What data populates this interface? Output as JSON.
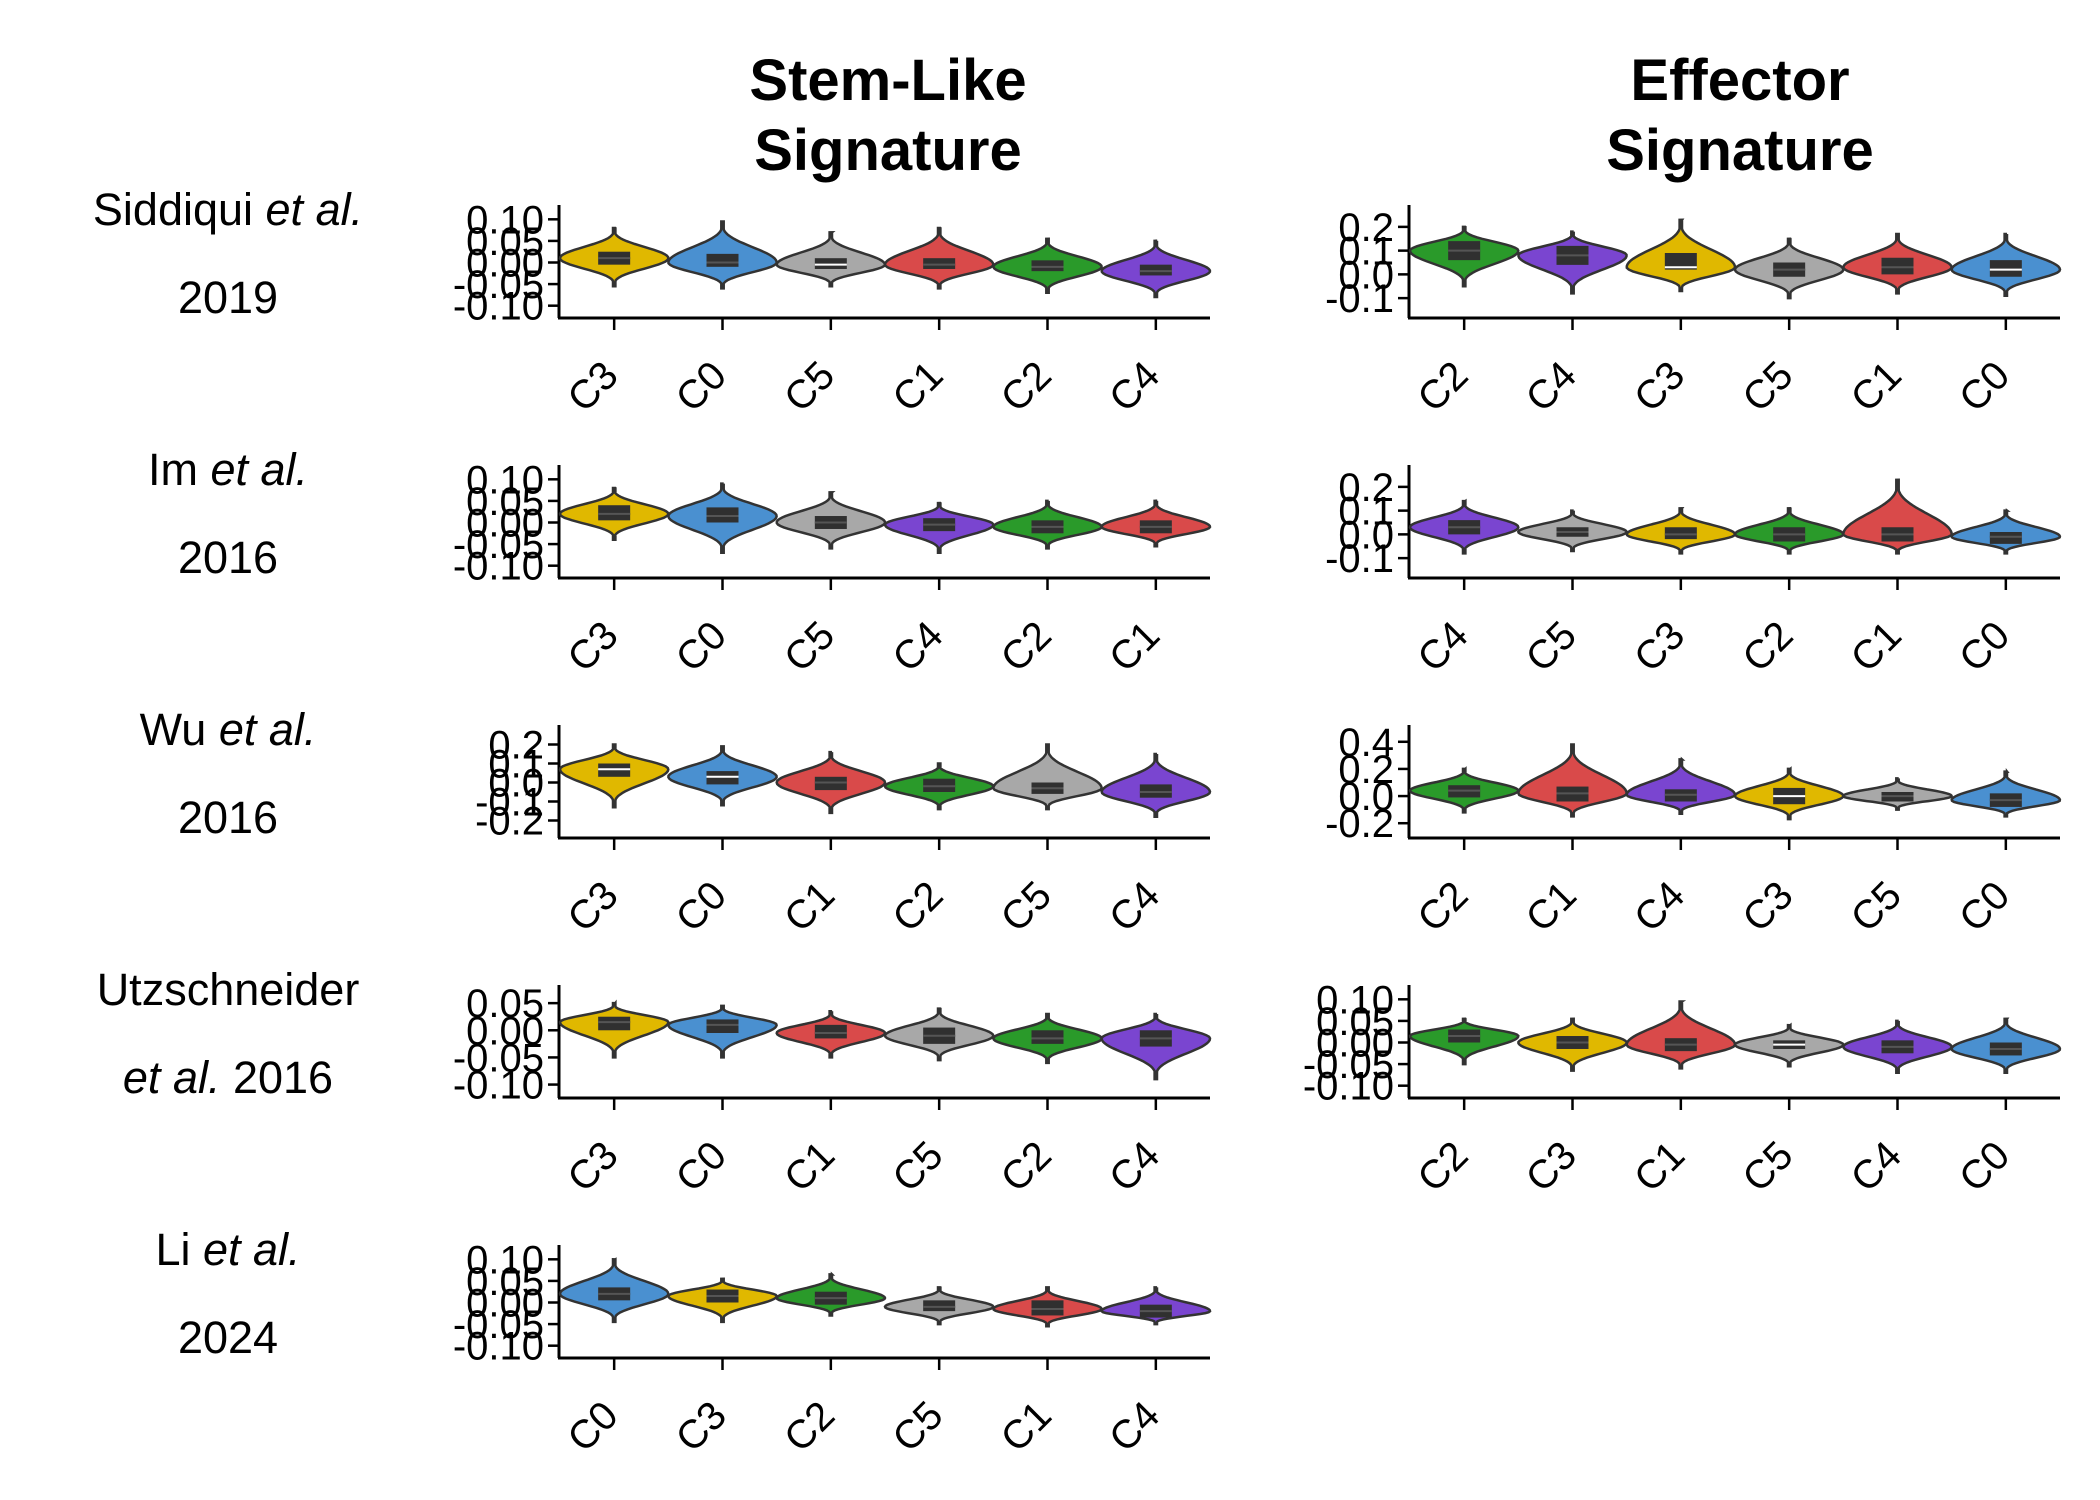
{
  "column_titles": [
    [
      "Stem-Like",
      "Signature"
    ],
    [
      "Effector",
      "Signature"
    ]
  ],
  "row_labels": [
    {
      "line1": "Siddiqui",
      "line1_italic": " et al.",
      "line2": "2019",
      "line2_italic_prefix": ""
    },
    {
      "line1": "Im",
      "line1_italic": " et al.",
      "line2": "2016",
      "line2_italic_prefix": ""
    },
    {
      "line1": "Wu",
      "line1_italic": " et al.",
      "line2": "2016",
      "line2_italic_prefix": ""
    },
    {
      "line1": "Utzschneider",
      "line1_italic": "",
      "line2": " 2016",
      "line2_italic_prefix": "et al."
    },
    {
      "line1": "Li",
      "line1_italic": " et al.",
      "line2": "2024",
      "line2_italic_prefix": ""
    }
  ],
  "colors": {
    "C0": "#4a90d0",
    "C1": "#d94a4a",
    "C2": "#2a9a2a",
    "C3": "#e0b800",
    "C4": "#7a45d0",
    "C5": "#a8a8a8",
    "box": "#303030",
    "outline": "#333333"
  },
  "chart_data": [
    {
      "type": "violin",
      "panel": "Siddiqui et al. 2019 / Stem-Like Signature",
      "yticks": [
        "0.10",
        "0.05",
        "0.00",
        "-0.05",
        "-0.10"
      ],
      "ylim": [
        -0.11,
        0.11
      ],
      "categories": [
        "C3",
        "C0",
        "C5",
        "C1",
        "C2",
        "C4"
      ],
      "medians": [
        0.01,
        0.0,
        -0.005,
        -0.005,
        -0.01,
        -0.02
      ],
      "q1": [
        -0.005,
        -0.01,
        -0.015,
        -0.015,
        -0.02,
        -0.03
      ],
      "q3": [
        0.025,
        0.02,
        0.01,
        0.01,
        0.005,
        -0.005
      ],
      "min": [
        -0.055,
        -0.06,
        -0.055,
        -0.06,
        -0.07,
        -0.08
      ],
      "max": [
        0.08,
        0.095,
        0.07,
        0.08,
        0.055,
        0.05
      ],
      "white_median": [
        false,
        false,
        true,
        false,
        false,
        false
      ]
    },
    {
      "type": "violin",
      "panel": "Siddiqui et al. 2019 / Effector Signature",
      "yticks": [
        "0.2",
        "0.1",
        "0.0",
        "-0.1"
      ],
      "ylim": [
        -0.15,
        0.25
      ],
      "categories": [
        "C2",
        "C4",
        "C3",
        "C5",
        "C1",
        "C0"
      ],
      "medians": [
        0.1,
        0.08,
        0.03,
        0.02,
        0.03,
        0.02
      ],
      "q1": [
        0.06,
        0.04,
        0.02,
        -0.01,
        0.0,
        -0.01
      ],
      "q3": [
        0.14,
        0.12,
        0.09,
        0.05,
        0.07,
        0.06
      ],
      "min": [
        -0.05,
        -0.08,
        -0.07,
        -0.1,
        -0.08,
        -0.09
      ],
      "max": [
        0.2,
        0.18,
        0.23,
        0.15,
        0.17,
        0.17
      ],
      "white_median": [
        false,
        false,
        true,
        false,
        false,
        true
      ]
    },
    {
      "type": "violin",
      "panel": "Im et al. 2016 / Stem-Like Signature",
      "yticks": [
        "0.10",
        "0.05",
        "0.00",
        "-0.05",
        "-0.10"
      ],
      "ylim": [
        -0.11,
        0.11
      ],
      "categories": [
        "C3",
        "C0",
        "C5",
        "C4",
        "C2",
        "C1"
      ],
      "medians": [
        0.02,
        0.015,
        0.0,
        -0.005,
        -0.01,
        -0.01
      ],
      "q1": [
        0.005,
        0.0,
        -0.015,
        -0.02,
        -0.025,
        -0.025
      ],
      "q3": [
        0.04,
        0.035,
        0.015,
        0.01,
        0.005,
        0.005
      ],
      "min": [
        -0.04,
        -0.07,
        -0.06,
        -0.07,
        -0.06,
        -0.055
      ],
      "max": [
        0.08,
        0.09,
        0.07,
        0.045,
        0.05,
        0.05
      ],
      "white_median": [
        false,
        false,
        false,
        false,
        false,
        false
      ]
    },
    {
      "type": "violin",
      "panel": "Im et al. 2016 / Effector Signature",
      "yticks": [
        "0.2",
        "0.1",
        "0.0",
        "-0.1"
      ],
      "ylim": [
        -0.15,
        0.25
      ],
      "categories": [
        "C4",
        "C5",
        "C3",
        "C2",
        "C1",
        "C0"
      ],
      "medians": [
        0.03,
        0.01,
        0.0,
        0.0,
        0.0,
        -0.01
      ],
      "q1": [
        0.0,
        -0.01,
        -0.02,
        -0.03,
        -0.03,
        -0.04
      ],
      "q3": [
        0.06,
        0.03,
        0.03,
        0.03,
        0.03,
        0.01
      ],
      "min": [
        -0.08,
        -0.07,
        -0.08,
        -0.08,
        -0.08,
        -0.08
      ],
      "max": [
        0.14,
        0.1,
        0.11,
        0.11,
        0.23,
        0.1
      ],
      "white_median": [
        false,
        false,
        false,
        false,
        false,
        false
      ]
    },
    {
      "type": "violin",
      "panel": "Wu et al. 2016 / Stem-Like Signature",
      "yticks": [
        "0.2",
        "0.1",
        "0.0",
        "-0.1",
        "-0.2"
      ],
      "ylim": [
        -0.25,
        0.25
      ],
      "categories": [
        "C3",
        "C0",
        "C1",
        "C2",
        "C5",
        "C4"
      ],
      "medians": [
        0.07,
        0.03,
        0.0,
        -0.02,
        -0.03,
        -0.05
      ],
      "q1": [
        0.03,
        -0.01,
        -0.04,
        -0.05,
        -0.06,
        -0.08
      ],
      "q3": [
        0.1,
        0.06,
        0.03,
        0.02,
        0.0,
        -0.01
      ],
      "min": [
        -0.13,
        -0.12,
        -0.16,
        -0.14,
        -0.14,
        -0.18
      ],
      "max": [
        0.2,
        0.19,
        0.16,
        0.1,
        0.2,
        0.15
      ],
      "white_median": [
        true,
        true,
        false,
        false,
        false,
        false
      ]
    },
    {
      "type": "violin",
      "panel": "Wu et al. 2016 / Effector Signature",
      "yticks": [
        "0.4",
        "0.2",
        "0.0",
        "-0.2"
      ],
      "ylim": [
        -0.25,
        0.45
      ],
      "categories": [
        "C2",
        "C1",
        "C4",
        "C3",
        "C5",
        "C0"
      ],
      "medians": [
        0.04,
        0.02,
        0.01,
        0.0,
        0.0,
        -0.03
      ],
      "q1": [
        -0.01,
        -0.04,
        -0.04,
        -0.06,
        -0.04,
        -0.08
      ],
      "q3": [
        0.08,
        0.07,
        0.05,
        0.06,
        0.03,
        0.02
      ],
      "min": [
        -0.12,
        -0.15,
        -0.13,
        -0.17,
        -0.1,
        -0.15
      ],
      "max": [
        0.2,
        0.38,
        0.27,
        0.2,
        0.13,
        0.18
      ],
      "white_median": [
        false,
        false,
        false,
        true,
        false,
        false
      ]
    },
    {
      "type": "violin",
      "panel": "Utzschneider et al. 2016 / Stem-Like Signature",
      "yticks": [
        "0.05",
        "0.00",
        "-0.05",
        "-0.10"
      ],
      "ylim": [
        -0.11,
        0.065
      ],
      "categories": [
        "C3",
        "C0",
        "C1",
        "C5",
        "C2",
        "C4"
      ],
      "medians": [
        0.015,
        0.01,
        -0.005,
        -0.01,
        -0.015,
        -0.015
      ],
      "q1": [
        0.0,
        -0.005,
        -0.015,
        -0.025,
        -0.025,
        -0.03
      ],
      "q3": [
        0.025,
        0.02,
        0.01,
        0.005,
        0.0,
        0.0
      ],
      "min": [
        -0.05,
        -0.05,
        -0.05,
        -0.055,
        -0.06,
        -0.09
      ],
      "max": [
        0.05,
        0.045,
        0.035,
        0.04,
        0.03,
        0.03
      ],
      "white_median": [
        false,
        false,
        false,
        false,
        false,
        false
      ]
    },
    {
      "type": "violin",
      "panel": "Utzschneider et al. 2016 / Effector Signature",
      "yticks": [
        "0.10",
        "0.05",
        "0.00",
        "-0.05",
        "-0.10"
      ],
      "ylim": [
        -0.11,
        0.11
      ],
      "categories": [
        "C2",
        "C3",
        "C1",
        "C5",
        "C4",
        "C0"
      ],
      "medians": [
        0.015,
        0.0,
        -0.005,
        -0.005,
        -0.01,
        -0.015
      ],
      "q1": [
        0.0,
        -0.015,
        -0.02,
        -0.015,
        -0.025,
        -0.03
      ],
      "q3": [
        0.03,
        0.015,
        0.01,
        0.005,
        0.005,
        0.0
      ],
      "min": [
        -0.05,
        -0.065,
        -0.06,
        -0.055,
        -0.07,
        -0.07
      ],
      "max": [
        0.055,
        0.055,
        0.095,
        0.04,
        0.05,
        0.055
      ],
      "white_median": [
        false,
        false,
        false,
        true,
        false,
        false
      ]
    },
    {
      "type": "violin",
      "panel": "Li et al. 2024 / Stem-Like Signature",
      "yticks": [
        "0.10",
        "0.05",
        "0.00",
        "-0.05",
        "-0.10"
      ],
      "ylim": [
        -0.11,
        0.11
      ],
      "categories": [
        "C0",
        "C3",
        "C2",
        "C5",
        "C1",
        "C4"
      ],
      "medians": [
        0.02,
        0.015,
        0.01,
        -0.01,
        -0.015,
        -0.02
      ],
      "q1": [
        0.005,
        0.0,
        -0.005,
        -0.02,
        -0.03,
        -0.035
      ],
      "q3": [
        0.035,
        0.03,
        0.025,
        0.005,
        0.005,
        -0.005
      ],
      "min": [
        -0.045,
        -0.045,
        -0.03,
        -0.05,
        -0.055,
        -0.05
      ],
      "max": [
        0.1,
        0.055,
        0.065,
        0.035,
        0.035,
        0.035
      ],
      "white_median": [
        false,
        false,
        false,
        false,
        false,
        false
      ]
    }
  ]
}
